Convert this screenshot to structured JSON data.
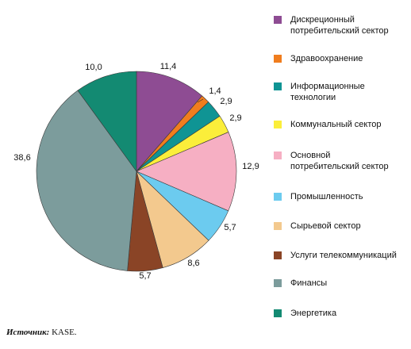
{
  "chart_data": {
    "type": "pie",
    "categories": [
      "Дискреционный\nпотребительский сектор",
      "Здравоохранение",
      "Информационные\nтехнологии",
      "Коммунальный сектор",
      "Основной\nпотребительский сектор",
      "Промышленность",
      "Сырьевой сектор",
      "Услуги телекоммуникаций",
      "Финансы",
      "Энергетика"
    ],
    "values": [
      11.4,
      1.4,
      2.9,
      2.9,
      12.9,
      5.7,
      8.6,
      5.7,
      38.6,
      10.0
    ],
    "value_labels": [
      "11,4",
      "1,4",
      "2,9",
      "2,9",
      "12,9",
      "5,7",
      "8,6",
      "5,7",
      "38,6",
      "10,0"
    ],
    "colors": [
      "#8E4C93",
      "#F07D1E",
      "#0F9494",
      "#FBEE3A",
      "#F6AFC3",
      "#6CCBEF",
      "#F3C98E",
      "#8A4426",
      "#7C9C9C",
      "#138A72"
    ],
    "start_angle_deg": 0,
    "direction": "clockwise",
    "legend_position": "right"
  },
  "source": {
    "label": "Источник:",
    "value": "KASE."
  }
}
